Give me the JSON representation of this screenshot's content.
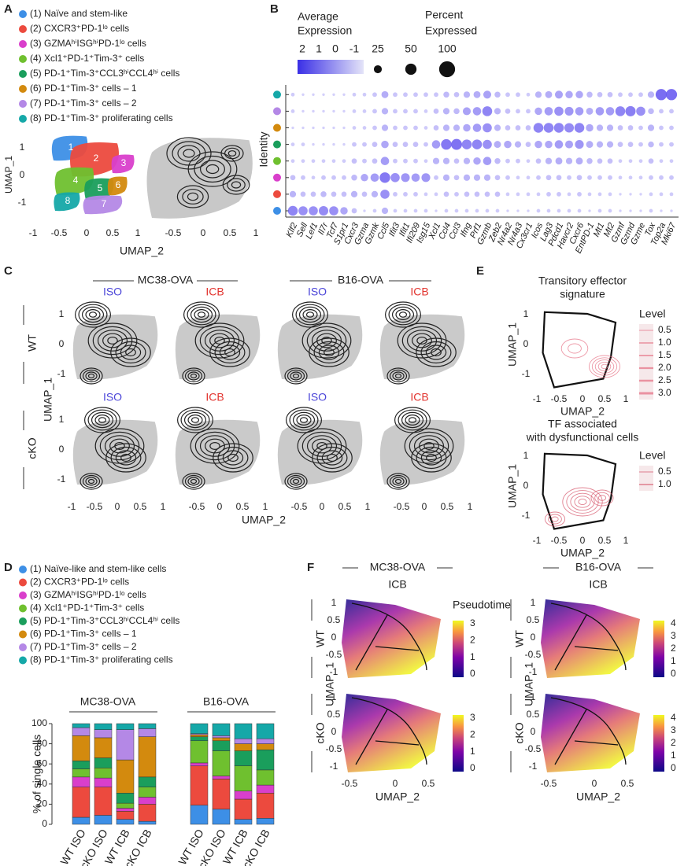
{
  "panel_labels": [
    "A",
    "B",
    "C",
    "D",
    "E",
    "F"
  ],
  "panel_a": {
    "legend": [
      "(1) Naïve and stem-like",
      "(2) CXCR3⁺PD-1ˡᵒ cells",
      "(3) GZMAʰⁱISGʰⁱPD-1ˡᵒ cells",
      "(4) Xcl1⁺PD-1⁺Tim-3⁺ cells",
      "(5) PD-1⁺Tim-3⁺CCL3ʰⁱCCL4ʰⁱ cells",
      "(6) PD-1⁺Tim-3⁺ cells – 1",
      "(7) PD-1⁺Tim-3⁺ cells – 2",
      "(8) PD-1⁺Tim-3⁺ proliferating cells"
    ],
    "cluster_colors": [
      "#3d8fe6",
      "#ec4a3e",
      "#d93fcb",
      "#6fc02f",
      "#1a9e5c",
      "#d38a0e",
      "#b488e6",
      "#15a8a8"
    ],
    "cluster_numbers": [
      "1",
      "2",
      "3",
      "4",
      "5",
      "6",
      "7",
      "8"
    ],
    "y_axis": "UMAP_1",
    "x_axis": "UMAP_2",
    "yticks": [
      "1",
      "0",
      "-1"
    ],
    "xticks": [
      "-1",
      "-0.5",
      "0",
      "0.5",
      "1"
    ]
  },
  "panel_b": {
    "expression_title": [
      "Average",
      "Expression"
    ],
    "expression_ticks": [
      "2",
      "1",
      "0",
      "-1"
    ],
    "percent_title": [
      "Percent",
      "Expressed"
    ],
    "percent_ticks": [
      25,
      50,
      100
    ],
    "y_axis": "Identity",
    "dot_color": "#6a5cf0",
    "genes": [
      "Klf2",
      "Sell",
      "Lef1",
      "Il7r",
      "Tcf7",
      "S1pr1",
      "Cxcr3",
      "Gzma",
      "Gzmk",
      "Ccl5",
      "Ifit3",
      "Ifit1",
      "Ifi209",
      "Isg15",
      "Xcl1",
      "Ccl4",
      "Ccl3",
      "Ifng",
      "Prf1",
      "Gzmb",
      "Zeb2",
      "Nr4a2",
      "Nr4a3",
      "Cx3cr1",
      "Icos",
      "Lag3",
      "Pdcd1",
      "Havcr2",
      "Cxcr6",
      "EntPD-1",
      "Mt1",
      "Mt2",
      "Gzmf",
      "Gzmd",
      "Gzme",
      "Tox",
      "Top2a",
      "Mki67"
    ],
    "percent": [
      [
        70,
        60,
        60,
        65,
        60,
        40,
        20,
        5,
        10,
        30,
        10,
        10,
        10,
        10,
        5,
        10,
        10,
        10,
        10,
        10,
        10,
        5,
        5,
        5,
        10,
        10,
        10,
        10,
        10,
        5,
        10,
        10,
        5,
        5,
        5,
        10,
        5,
        5
      ],
      [
        30,
        20,
        20,
        25,
        20,
        20,
        30,
        20,
        30,
        60,
        15,
        15,
        15,
        10,
        10,
        20,
        15,
        20,
        20,
        20,
        20,
        10,
        10,
        10,
        10,
        15,
        15,
        10,
        15,
        10,
        10,
        10,
        5,
        5,
        5,
        10,
        10,
        10
      ],
      [
        20,
        15,
        10,
        15,
        15,
        15,
        25,
        40,
        50,
        80,
        60,
        55,
        50,
        55,
        15,
        30,
        20,
        30,
        30,
        30,
        20,
        15,
        10,
        10,
        15,
        20,
        20,
        15,
        20,
        15,
        15,
        15,
        10,
        10,
        10,
        15,
        15,
        15
      ],
      [
        10,
        10,
        10,
        10,
        10,
        10,
        20,
        15,
        20,
        50,
        15,
        15,
        15,
        10,
        30,
        30,
        20,
        30,
        40,
        50,
        25,
        15,
        15,
        10,
        20,
        30,
        35,
        30,
        35,
        25,
        20,
        20,
        10,
        10,
        10,
        20,
        10,
        10
      ],
      [
        10,
        10,
        5,
        5,
        5,
        5,
        15,
        15,
        20,
        40,
        20,
        20,
        20,
        15,
        50,
        80,
        85,
        70,
        70,
        60,
        35,
        40,
        30,
        20,
        40,
        40,
        50,
        45,
        55,
        35,
        30,
        30,
        20,
        20,
        15,
        25,
        15,
        15
      ],
      [
        5,
        5,
        5,
        5,
        5,
        5,
        10,
        10,
        15,
        30,
        15,
        15,
        15,
        10,
        20,
        30,
        30,
        40,
        50,
        60,
        30,
        20,
        20,
        20,
        70,
        70,
        70,
        65,
        70,
        40,
        30,
        30,
        20,
        20,
        15,
        30,
        15,
        15
      ],
      [
        10,
        5,
        5,
        5,
        5,
        5,
        10,
        10,
        15,
        30,
        15,
        15,
        15,
        10,
        20,
        30,
        25,
        45,
        50,
        70,
        30,
        20,
        15,
        15,
        40,
        50,
        60,
        55,
        50,
        35,
        50,
        50,
        70,
        75,
        60,
        25,
        15,
        15
      ],
      [
        10,
        5,
        5,
        5,
        5,
        5,
        10,
        10,
        15,
        35,
        15,
        15,
        15,
        15,
        15,
        25,
        20,
        30,
        35,
        45,
        25,
        15,
        15,
        10,
        30,
        35,
        45,
        40,
        40,
        25,
        20,
        20,
        15,
        15,
        15,
        30,
        90,
        90
      ]
    ]
  },
  "panel_c": {
    "models": [
      "MC38-OVA",
      "B16-OVA"
    ],
    "treatments": [
      "ISO",
      "ICB"
    ],
    "genotypes": [
      "WT",
      "cKO"
    ],
    "y_axis": "UMAP_1",
    "x_axis": "UMAP_2",
    "yticks": [
      "1",
      "0",
      "-1"
    ],
    "xticks": [
      "-1",
      "-0.5",
      "0",
      "0.5",
      "1"
    ]
  },
  "panel_e": {
    "titles": [
      [
        "Transitory effector",
        "signature"
      ],
      [
        "TF associated",
        "with dysfunctional cells"
      ]
    ],
    "legend_title": "Level",
    "levels": [
      [
        "0.5",
        "1.0",
        "1.5",
        "2.0",
        "2.5",
        "3.0"
      ],
      [
        "0.5",
        "1.0"
      ]
    ],
    "y_axis": "UMAP_1",
    "x_axis": "UMAP_2",
    "yticks": [
      "1",
      "0",
      "-1"
    ],
    "xticks": [
      "-1",
      "-0.5",
      "0",
      "0.5",
      "1"
    ]
  },
  "panel_f": {
    "models": [
      "MC38-OVA",
      "B16-OVA"
    ],
    "treatment": "ICB",
    "genotypes": [
      "WT",
      "cKO"
    ],
    "colorbar_title": "Pseudotime",
    "colorbar_ticks": [
      [
        "3",
        "2",
        "1",
        "0"
      ],
      [
        "4",
        "3",
        "2",
        "1",
        "0"
      ]
    ],
    "y_axis": "UMAP_1",
    "x_axis": "UMAP_2",
    "yticks": [
      "1",
      "0.5",
      "0",
      "-0.5",
      "-1"
    ],
    "xticks": [
      "-0.5",
      "0",
      "0.5"
    ]
  },
  "chart_data": {
    "type": "bar",
    "stacked": true,
    "ylabel": "% of single cells",
    "groups": [
      "MC38-OVA",
      "B16-OVA"
    ],
    "categories": [
      "WT ISO",
      "cKO ISO",
      "WT ICB",
      "cKO ICB",
      "WT ISO",
      "cKO ISO",
      "WT ICB",
      "cKO ICB"
    ],
    "ylim": [
      0,
      100
    ],
    "yticks": [
      0,
      20,
      40,
      60,
      80,
      100
    ],
    "series": [
      {
        "name": "(1) Naïve-like and stem-like cells",
        "color": "#3d8fe6",
        "values": [
          7,
          9,
          5,
          3,
          19,
          15,
          5,
          6
        ]
      },
      {
        "name": "(2) CXCR3⁺PD-1ˡᵒ cells",
        "color": "#ec4a3e",
        "values": [
          30,
          28,
          8,
          17,
          39,
          30,
          20,
          25
        ]
      },
      {
        "name": "(3) GZMAʰⁱISGʰⁱPD-1ˡᵒ cells",
        "color": "#d93fcb",
        "values": [
          10,
          9,
          3,
          7,
          3,
          3,
          8,
          8
        ]
      },
      {
        "name": "(4) Xcl1⁺PD-1⁺Tim-3⁺ cells",
        "color": "#6fc02f",
        "values": [
          8,
          10,
          5,
          10,
          22,
          25,
          25,
          15
        ]
      },
      {
        "name": "(5) PD-1⁺Tim-3⁺CCL3ʰⁱCCL4ʰⁱ cells",
        "color": "#1a9e5c",
        "values": [
          8,
          10,
          10,
          10,
          4,
          10,
          15,
          20
        ]
      },
      {
        "name": "(6) PD-1⁺Tim-3⁺ cells – 1",
        "color": "#d38a0e",
        "values": [
          25,
          20,
          33,
          40,
          2,
          3,
          7,
          6
        ]
      },
      {
        "name": "(7) PD-1⁺Tim-3⁺ cells – 2",
        "color": "#b488e6",
        "values": [
          8,
          8,
          30,
          8,
          1,
          2,
          5,
          5
        ]
      },
      {
        "name": "(8) PD-1⁺Tim-3⁺ proliferating cells",
        "color": "#15a8a8",
        "values": [
          4,
          6,
          6,
          5,
          10,
          12,
          15,
          15
        ]
      }
    ]
  }
}
